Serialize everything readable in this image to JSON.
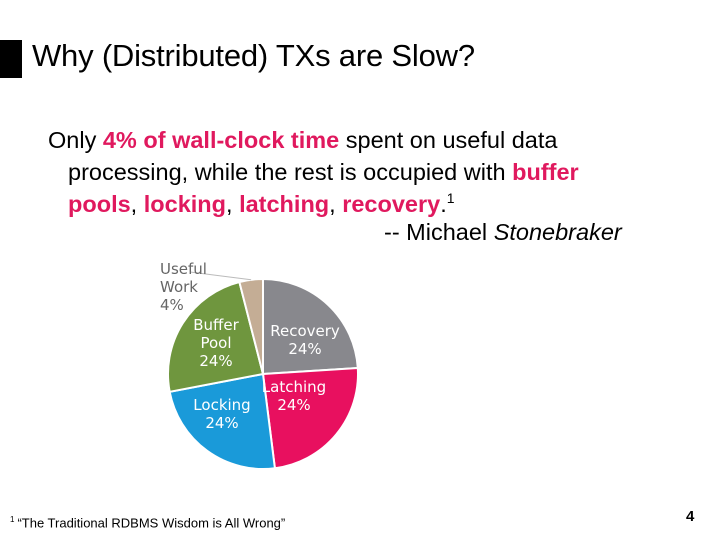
{
  "slide": {
    "title": "Why (Distributed) TXs are Slow?",
    "quote": {
      "p1": "Only ",
      "h1": "4% of wall-clock time",
      "p2": " spent on useful data",
      "p3": "processing, while the rest is occupied with ",
      "h2": "buffer",
      "h3": "pools",
      "p4": ", ",
      "h4": "locking",
      "p5": ", ",
      "h5": "latching",
      "p6": ", ",
      "h6": "recovery",
      "p7": ".",
      "ref": "1"
    },
    "attribution": {
      "prefix": "-- Michael ",
      "name": "Stonebraker"
    },
    "footnote": {
      "mark": "1",
      "text": "“The Traditional RDBMS Wisdom is All Wrong”"
    },
    "page_number": "4",
    "highlight_color": "#e0195e"
  },
  "chart_data": {
    "type": "pie",
    "title": "",
    "slices": [
      {
        "name": "Recovery",
        "value": 24,
        "label": "24%",
        "color": "#88888d"
      },
      {
        "name": "Latching",
        "value": 24,
        "label": "24%",
        "color": "#e8105f"
      },
      {
        "name": "Locking",
        "value": 24,
        "label": "24%",
        "color": "#1a9ad9"
      },
      {
        "name": "Buffer Pool",
        "value": 24,
        "label": "24%",
        "color": "#6f963e"
      },
      {
        "name": "Useful Work",
        "value": 4,
        "label": "4%",
        "color": "#c4ad95"
      }
    ]
  }
}
